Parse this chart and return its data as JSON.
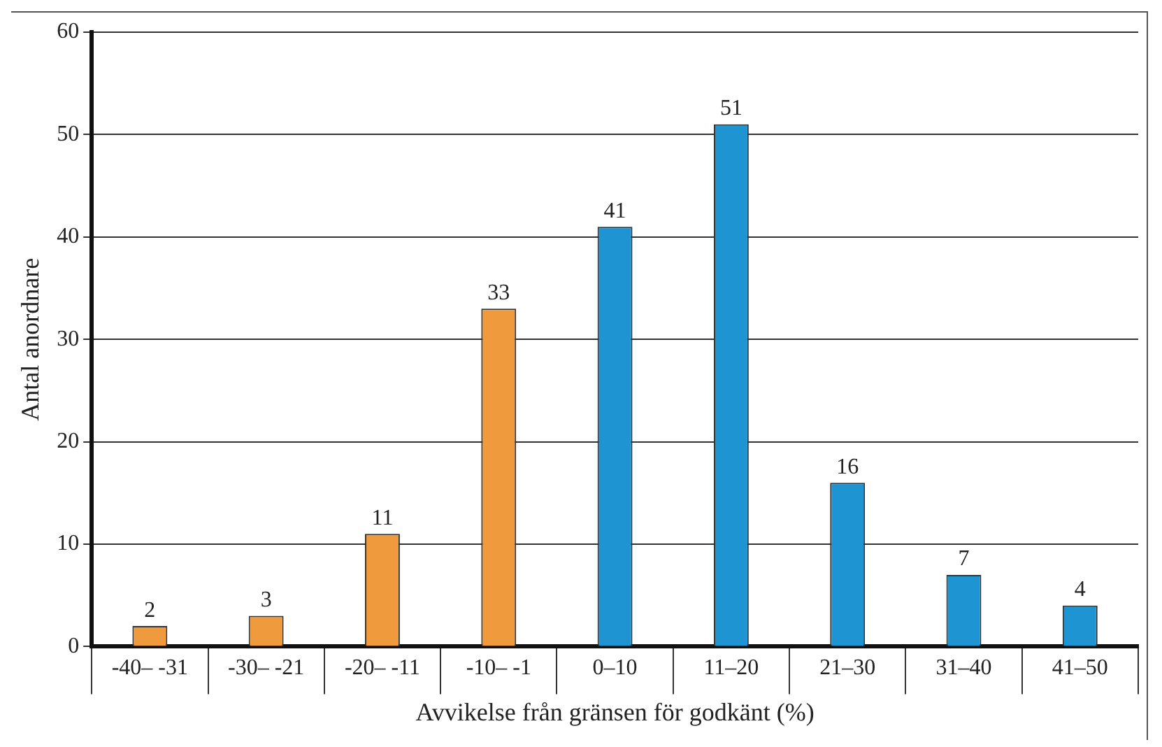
{
  "chart_data": {
    "type": "bar",
    "xlabel": "Avvikelse från gränsen för godkänt (%)",
    "ylabel": "Antal anordnare",
    "categories": [
      "-40– -31",
      "-30– -21",
      "-20– -11",
      "-10– -1",
      "0–10",
      "11–20",
      "21–30",
      "31–40",
      "41–50"
    ],
    "values": [
      2,
      3,
      11,
      33,
      41,
      51,
      16,
      7,
      4
    ],
    "colors": [
      "#f09a3e",
      "#f09a3e",
      "#f09a3e",
      "#f09a3e",
      "#1f94d2",
      "#1f94d2",
      "#1f94d2",
      "#1f94d2",
      "#1f94d2"
    ],
    "ylim": [
      0,
      60
    ],
    "yticks": [
      0,
      10,
      20,
      30,
      40,
      50,
      60
    ],
    "grid": "y",
    "data_labels": true
  }
}
